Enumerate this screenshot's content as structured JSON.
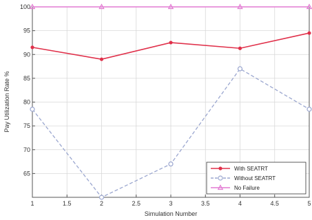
{
  "chart_data": {
    "type": "line",
    "xlabel": "Simulation Number",
    "ylabel": "Pay Utilization Rate %",
    "xlim": [
      1,
      5
    ],
    "ylim": [
      60,
      100
    ],
    "x_ticks": [
      "1",
      "1.5",
      "2",
      "2.5",
      "3",
      "3.5",
      "4",
      "4.5",
      "5"
    ],
    "x_tick_values": [
      1,
      1.5,
      2,
      2.5,
      3,
      3.5,
      4,
      4.5,
      5
    ],
    "y_ticks": [
      "65",
      "70",
      "75",
      "80",
      "85",
      "90",
      "95",
      "100"
    ],
    "y_tick_values": [
      65,
      70,
      75,
      80,
      85,
      90,
      95,
      100
    ],
    "grid": true,
    "legend_position": "bottom-right",
    "series": [
      {
        "name": "With SEATRT",
        "x": [
          1,
          2,
          3,
          4,
          5
        ],
        "y": [
          91.5,
          89.0,
          92.5,
          91.3,
          94.5
        ],
        "color": "#e0304a",
        "style": "solid",
        "marker": "dot"
      },
      {
        "name": "Without SEATRT",
        "x": [
          1,
          2,
          3,
          4,
          5
        ],
        "y": [
          78.5,
          60.0,
          67.0,
          87.0,
          78.5
        ],
        "color": "#9aa6cf",
        "style": "dashed",
        "marker": "circle"
      },
      {
        "name": "No Failure",
        "x": [
          1,
          2,
          3,
          4,
          5
        ],
        "y": [
          100,
          100,
          100,
          100,
          100
        ],
        "color": "#e27ad2",
        "style": "solid",
        "marker": "triangle"
      }
    ]
  }
}
